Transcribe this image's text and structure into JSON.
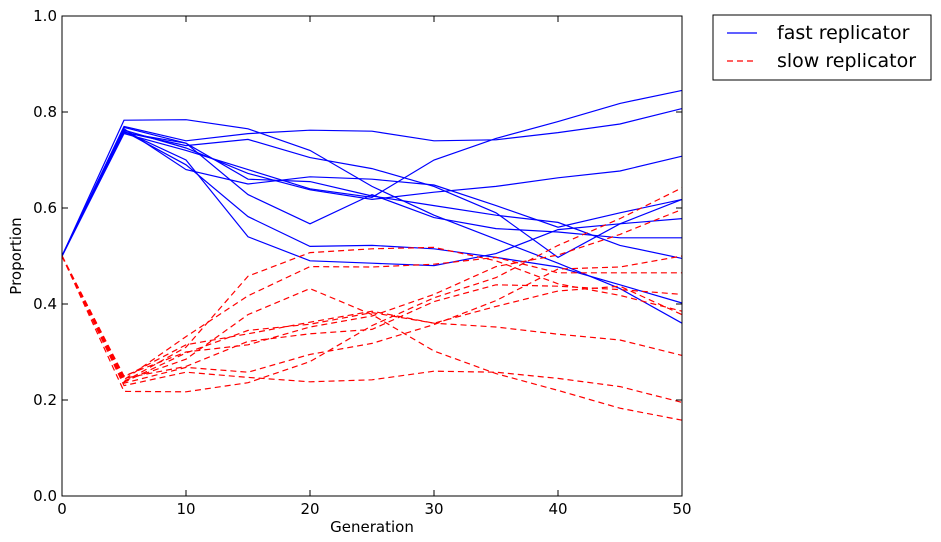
{
  "chart_data": {
    "type": "line",
    "title": "",
    "xlabel": "Generation",
    "ylabel": "Proportion",
    "xlim": [
      0,
      50
    ],
    "ylim": [
      0,
      1
    ],
    "xticks": [
      0,
      10,
      20,
      30,
      40,
      50
    ],
    "yticks": [
      0.0,
      0.2,
      0.4,
      0.6,
      0.8,
      1.0
    ],
    "xtick_labels": [
      "0",
      "10",
      "20",
      "30",
      "40",
      "50"
    ],
    "ytick_labels": [
      "0.0",
      "0.2",
      "0.4",
      "0.6",
      "0.8",
      "1.0"
    ],
    "grid": false,
    "legend_position": "outside-top-right",
    "legend": [
      {
        "label": "fast replicator",
        "color": "#0000ff",
        "dash": "solid"
      },
      {
        "label": "slow replicator",
        "color": "#ff0000",
        "dash": "dashed"
      }
    ],
    "x": [
      0,
      5,
      10,
      15,
      20,
      25,
      30,
      35,
      40,
      45,
      50
    ],
    "series": [
      {
        "group": "fast replicator",
        "values": [
          0.5,
          0.783,
          0.784,
          0.765,
          0.72,
          0.645,
          0.585,
          0.535,
          0.485,
          0.432,
          0.36
        ]
      },
      {
        "group": "fast replicator",
        "values": [
          0.5,
          0.77,
          0.74,
          0.755,
          0.762,
          0.76,
          0.74,
          0.742,
          0.757,
          0.775,
          0.807
        ]
      },
      {
        "group": "fast replicator",
        "values": [
          0.5,
          0.765,
          0.68,
          0.65,
          0.665,
          0.66,
          0.648,
          0.605,
          0.56,
          0.59,
          0.618
        ]
      },
      {
        "group": "fast replicator",
        "values": [
          0.5,
          0.76,
          0.7,
          0.54,
          0.49,
          0.485,
          0.48,
          0.505,
          0.555,
          0.567,
          0.578
        ]
      },
      {
        "group": "fast replicator",
        "values": [
          0.5,
          0.758,
          0.73,
          0.743,
          0.705,
          0.682,
          0.645,
          0.59,
          0.497,
          0.567,
          0.618
        ]
      },
      {
        "group": "fast replicator",
        "values": [
          0.5,
          0.755,
          0.72,
          0.68,
          0.64,
          0.622,
          0.7,
          0.745,
          0.78,
          0.818,
          0.845
        ]
      },
      {
        "group": "fast replicator",
        "values": [
          0.5,
          0.762,
          0.725,
          0.672,
          0.638,
          0.618,
          0.633,
          0.645,
          0.663,
          0.677,
          0.708
        ]
      },
      {
        "group": "fast replicator",
        "values": [
          0.5,
          0.768,
          0.735,
          0.66,
          0.655,
          0.625,
          0.605,
          0.585,
          0.57,
          0.522,
          0.495
        ]
      },
      {
        "group": "fast replicator",
        "values": [
          0.5,
          0.757,
          0.735,
          0.628,
          0.567,
          0.628,
          0.58,
          0.557,
          0.55,
          0.538,
          0.538
        ]
      },
      {
        "group": "fast replicator",
        "values": [
          0.5,
          0.76,
          0.69,
          0.582,
          0.52,
          0.522,
          0.515,
          0.497,
          0.477,
          0.44,
          0.402
        ]
      },
      {
        "group": "slow replicator",
        "values": [
          0.5,
          0.218,
          0.217,
          0.236,
          0.28,
          0.355,
          0.413,
          0.455,
          0.522,
          0.578,
          0.642
        ]
      },
      {
        "group": "slow replicator",
        "values": [
          0.5,
          0.23,
          0.258,
          0.247,
          0.238,
          0.242,
          0.26,
          0.258,
          0.245,
          0.228,
          0.195
        ]
      },
      {
        "group": "slow replicator",
        "values": [
          0.5,
          0.235,
          0.268,
          0.258,
          0.295,
          0.318,
          0.357,
          0.407,
          0.473,
          0.477,
          0.5
        ]
      },
      {
        "group": "slow replicator",
        "values": [
          0.5,
          0.237,
          0.298,
          0.345,
          0.358,
          0.382,
          0.36,
          0.352,
          0.337,
          0.325,
          0.293
        ]
      },
      {
        "group": "slow replicator",
        "values": [
          0.5,
          0.238,
          0.31,
          0.458,
          0.507,
          0.515,
          0.518,
          0.49,
          0.442,
          0.418,
          0.385
        ]
      },
      {
        "group": "slow replicator",
        "values": [
          0.5,
          0.24,
          0.285,
          0.378,
          0.432,
          0.378,
          0.302,
          0.255,
          0.22,
          0.183,
          0.158
        ]
      },
      {
        "group": "slow replicator",
        "values": [
          0.5,
          0.242,
          0.332,
          0.417,
          0.478,
          0.477,
          0.483,
          0.497,
          0.465,
          0.465,
          0.465
        ]
      },
      {
        "group": "slow replicator",
        "values": [
          0.5,
          0.245,
          0.27,
          0.322,
          0.338,
          0.347,
          0.405,
          0.44,
          0.437,
          0.43,
          0.42
        ]
      },
      {
        "group": "slow replicator",
        "values": [
          0.5,
          0.248,
          0.315,
          0.338,
          0.362,
          0.385,
          0.36,
          0.395,
          0.427,
          0.437,
          0.378
        ]
      },
      {
        "group": "slow replicator",
        "values": [
          0.5,
          0.25,
          0.3,
          0.315,
          0.352,
          0.375,
          0.42,
          0.478,
          0.502,
          0.545,
          0.597
        ]
      }
    ]
  }
}
